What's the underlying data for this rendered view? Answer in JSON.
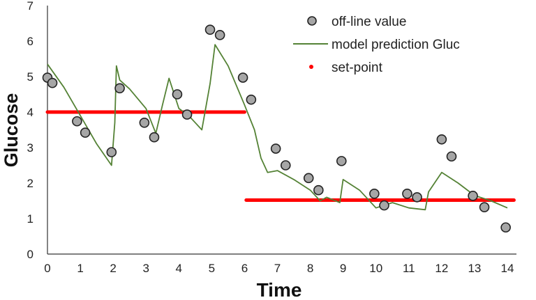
{
  "chart_data": {
    "type": "line",
    "xlabel": "Time",
    "ylabel": "Glucose",
    "xlim": [
      0,
      14
    ],
    "ylim": [
      0,
      7
    ],
    "xticks": [
      "0",
      "1",
      "2",
      "3",
      "4",
      "5",
      "6",
      "7",
      "8",
      "9",
      "10",
      "11",
      "12",
      "13",
      "14"
    ],
    "yticks": [
      "0",
      "1",
      "2",
      "3",
      "4",
      "5",
      "6",
      "7"
    ],
    "grid": false,
    "legend_position": "top-right",
    "series": [
      {
        "name": "off-line value",
        "kind": "scatter",
        "color": "#a6a6a6",
        "x": [
          0.0,
          0.15,
          0.9,
          1.15,
          1.95,
          2.2,
          2.95,
          3.25,
          3.95,
          4.25,
          4.95,
          5.25,
          5.95,
          6.2,
          6.95,
          7.25,
          7.95,
          8.25,
          8.95,
          9.95,
          10.25,
          10.95,
          11.25,
          12.0,
          12.3,
          12.95,
          13.3,
          13.95
        ],
        "y": [
          4.97,
          4.82,
          3.74,
          3.42,
          2.87,
          4.67,
          3.7,
          3.29,
          4.5,
          3.93,
          6.32,
          6.17,
          4.97,
          4.35,
          2.97,
          2.5,
          2.14,
          1.8,
          2.62,
          1.7,
          1.37,
          1.7,
          1.6,
          3.23,
          2.75,
          1.64,
          1.32,
          0.75
        ]
      },
      {
        "name": "model prediction Gluc",
        "kind": "line",
        "color": "#548235",
        "x": [
          0.0,
          0.5,
          1.0,
          1.5,
          1.95,
          2.05,
          2.1,
          2.2,
          2.5,
          3.0,
          3.3,
          3.5,
          3.7,
          4.0,
          4.3,
          4.5,
          4.7,
          4.95,
          5.1,
          5.5,
          6.0,
          6.3,
          6.5,
          6.7,
          7.0,
          7.5,
          8.0,
          8.3,
          8.5,
          8.9,
          9.0,
          9.5,
          10.0,
          10.5,
          11.0,
          11.5,
          11.6,
          12.0,
          12.5,
          13.0,
          13.5,
          14.0
        ],
        "y": [
          5.35,
          4.7,
          3.9,
          3.1,
          2.5,
          3.7,
          5.3,
          4.9,
          4.65,
          4.1,
          3.4,
          4.2,
          4.95,
          4.1,
          3.9,
          3.7,
          3.5,
          4.8,
          5.9,
          5.3,
          4.2,
          3.5,
          2.7,
          2.3,
          2.35,
          2.1,
          1.8,
          1.5,
          1.6,
          1.45,
          2.1,
          1.8,
          1.3,
          1.45,
          1.3,
          1.25,
          1.75,
          2.3,
          2.0,
          1.65,
          1.5,
          1.3
        ]
      },
      {
        "name": "set-point",
        "kind": "step",
        "color": "#ff0000",
        "x": [
          0.0,
          6.0,
          6.05,
          14.2
        ],
        "y": [
          4.0,
          4.0,
          1.52,
          1.52
        ]
      }
    ]
  }
}
